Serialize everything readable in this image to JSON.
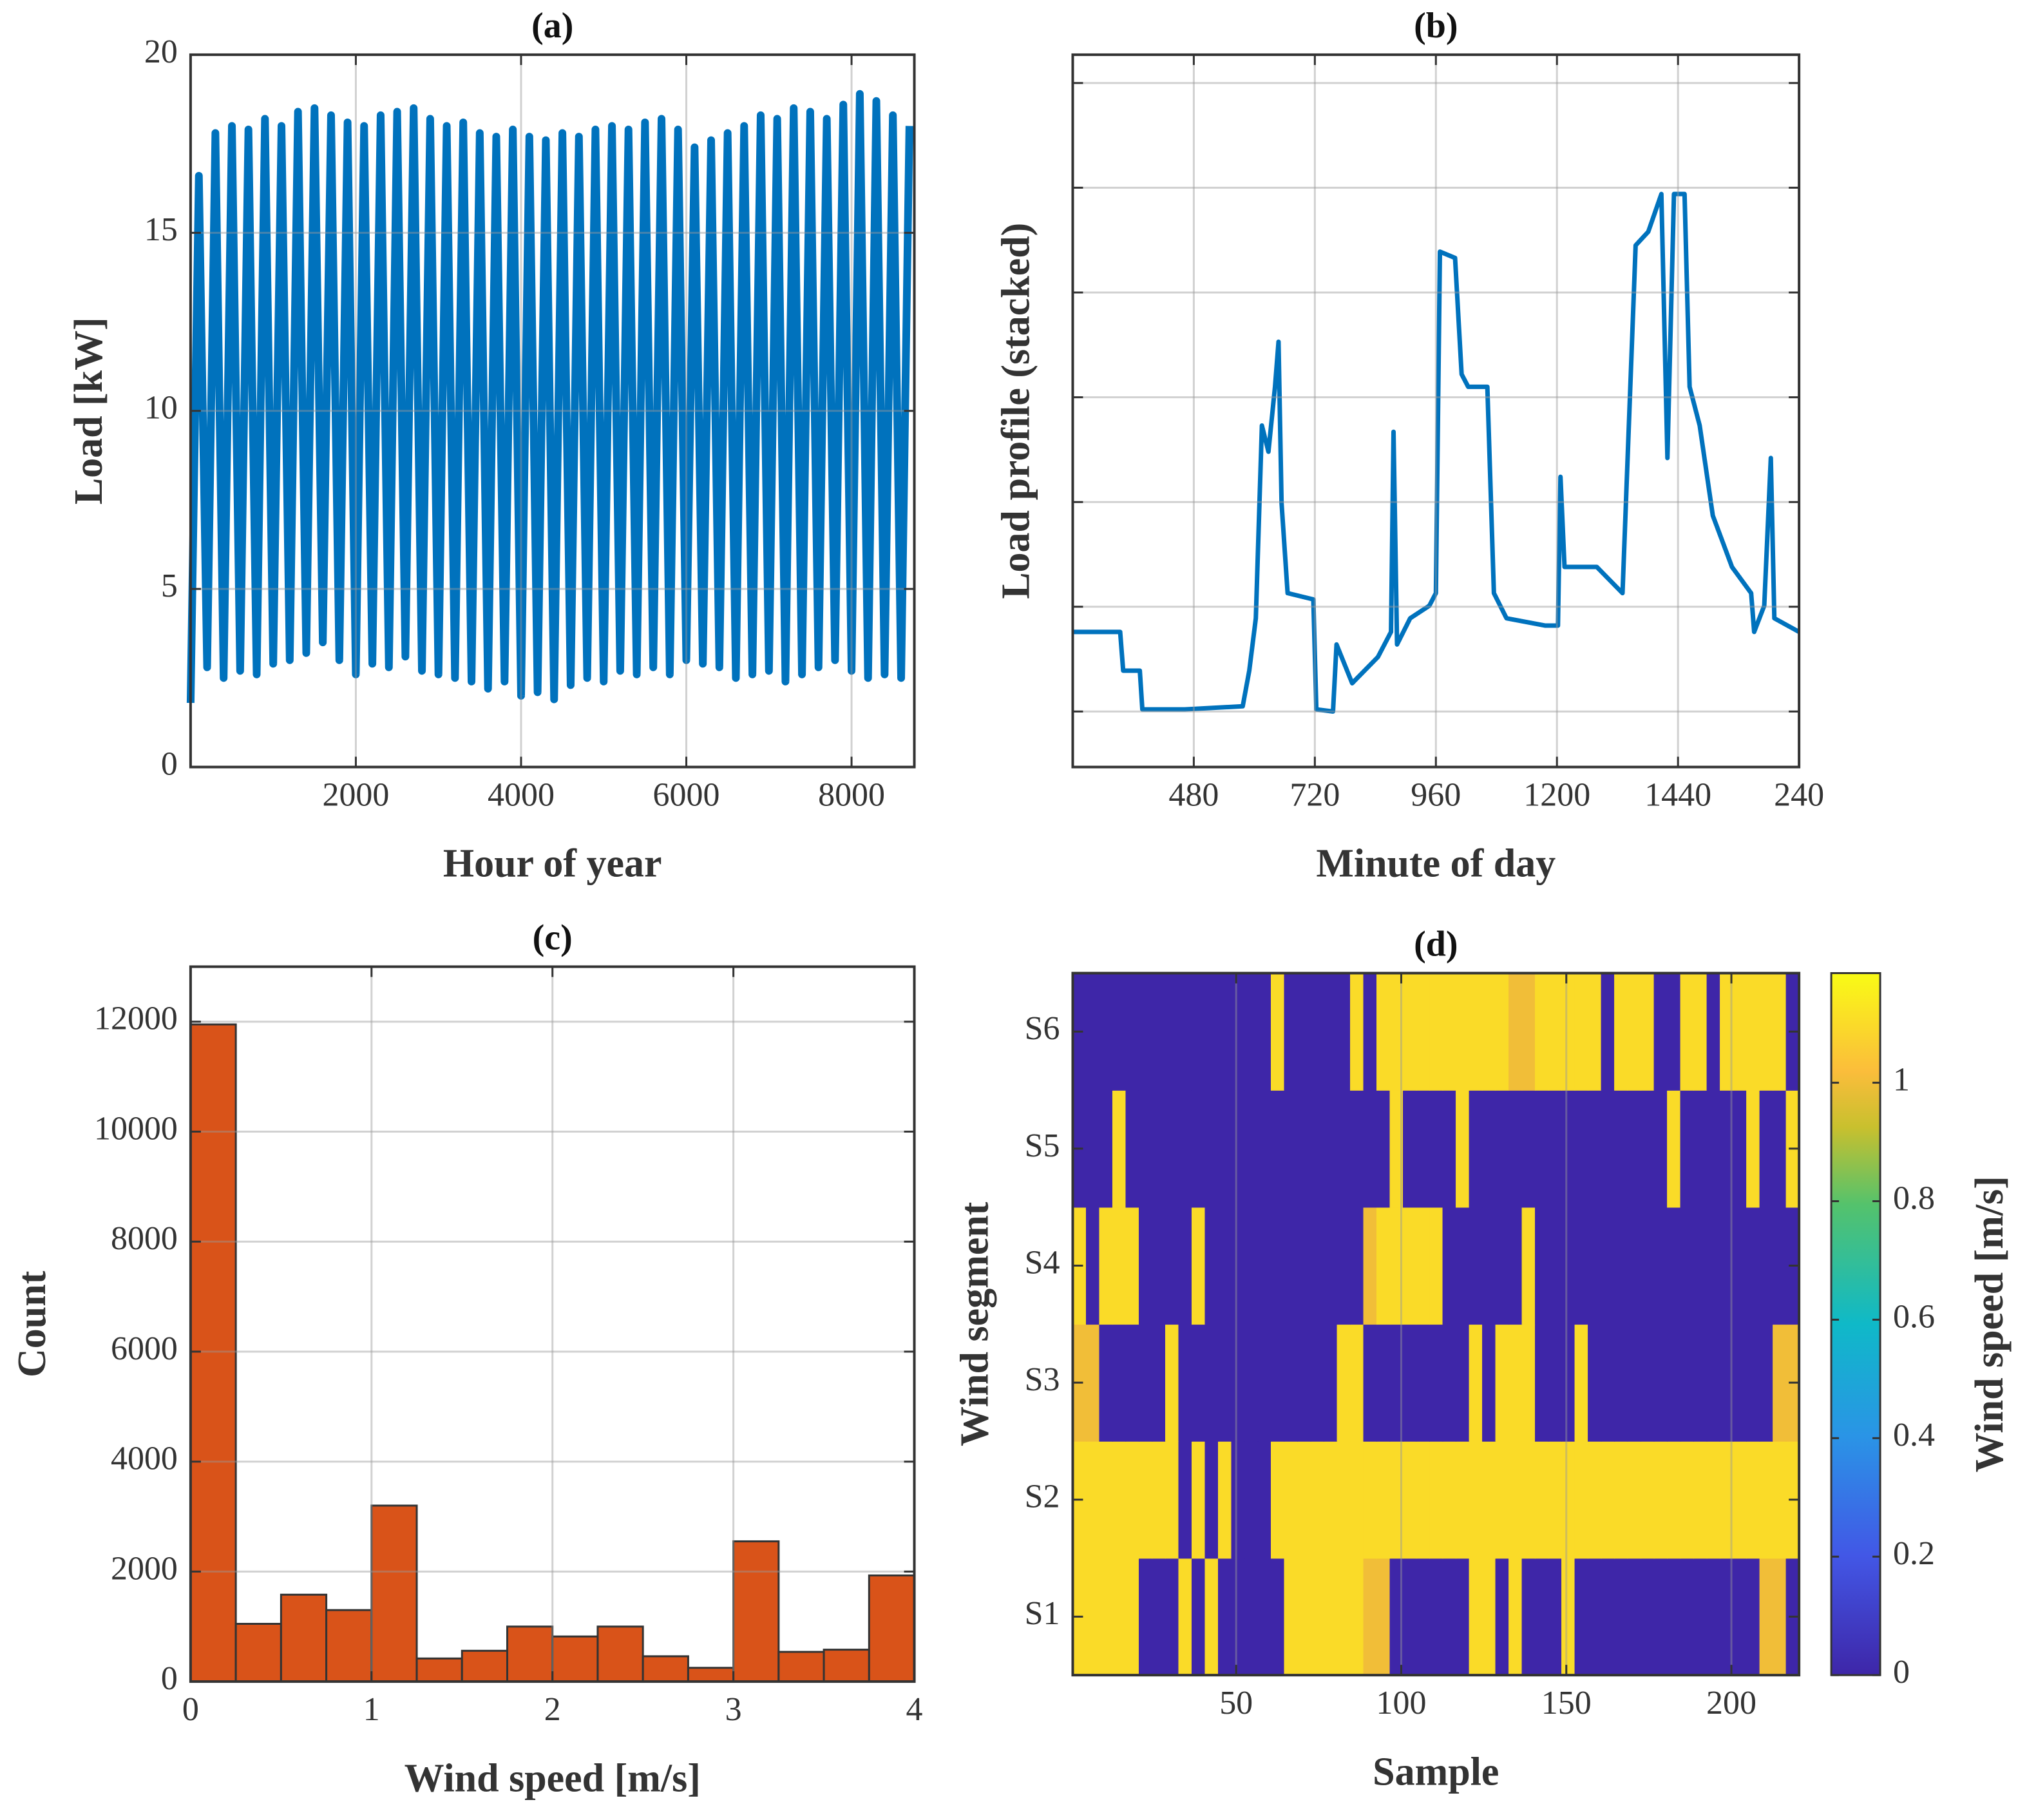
{
  "chart_data": [
    {
      "type": "line",
      "title": "(a)",
      "xlabel": "Hour of year",
      "ylabel": "Load [kW]",
      "color": "#0072bd",
      "grid": true,
      "xlim": [
        0,
        8760
      ],
      "ylim": [
        0,
        20
      ],
      "xticks": [
        2000,
        4000,
        6000,
        8000
      ],
      "yticks": [
        0,
        5,
        10,
        15,
        20
      ],
      "x": [
        0,
        100,
        200,
        300,
        400,
        500,
        600,
        700,
        800,
        900,
        1000,
        1100,
        1200,
        1300,
        1400,
        1500,
        1600,
        1700,
        1800,
        1900,
        2000,
        2100,
        2200,
        2300,
        2400,
        2500,
        2600,
        2700,
        2800,
        2900,
        3000,
        3100,
        3200,
        3300,
        3400,
        3500,
        3600,
        3700,
        3800,
        3900,
        4000,
        4100,
        4200,
        4300,
        4400,
        4500,
        4600,
        4700,
        4800,
        4900,
        5000,
        5100,
        5200,
        5300,
        5400,
        5500,
        5600,
        5700,
        5800,
        5900,
        6000,
        6100,
        6200,
        6300,
        6400,
        6500,
        6600,
        6700,
        6800,
        6900,
        7000,
        7100,
        7200,
        7300,
        7400,
        7500,
        7600,
        7700,
        7800,
        7900,
        8000,
        8100,
        8200,
        8300,
        8400,
        8500,
        8600,
        8700
      ],
      "values": [
        1.8,
        16.6,
        2.8,
        17.8,
        2.5,
        18.0,
        2.7,
        17.9,
        2.6,
        18.2,
        2.9,
        18.0,
        3.0,
        18.4,
        3.2,
        18.5,
        3.5,
        18.3,
        3.0,
        18.1,
        2.6,
        18.0,
        2.9,
        18.3,
        2.8,
        18.4,
        3.1,
        18.5,
        2.7,
        18.2,
        2.6,
        18.0,
        2.5,
        18.1,
        2.4,
        17.8,
        2.2,
        17.7,
        2.4,
        17.9,
        2.0,
        17.7,
        2.1,
        17.6,
        1.9,
        17.8,
        2.3,
        17.7,
        2.5,
        17.9,
        2.4,
        18.0,
        2.7,
        17.9,
        2.6,
        18.1,
        2.8,
        18.2,
        2.6,
        17.9,
        3.0,
        17.4,
        2.9,
        17.6,
        2.8,
        17.8,
        2.5,
        18.0,
        2.6,
        18.3,
        2.7,
        18.2,
        2.4,
        18.5,
        2.6,
        18.4,
        2.8,
        18.2,
        3.0,
        18.6,
        2.7,
        18.9,
        2.5,
        18.7,
        2.6,
        18.3,
        2.5,
        18.0
      ]
    },
    {
      "type": "line",
      "title": "(b)",
      "xlabel": "Minute of day",
      "ylabel": "Load profile (stacked)",
      "color": "#0072bd",
      "grid": true,
      "ytick_labels": false,
      "xlim": [
        240,
        1680
      ],
      "ylim": [
        0.47,
        7.27
      ],
      "xticks": [
        480,
        720,
        960,
        1200,
        1440,
        {
          "value": 1680,
          "label": "240"
        }
      ],
      "yticks": [
        1,
        2,
        3,
        4,
        5,
        6,
        7
      ],
      "x": [
        240,
        334,
        340,
        373,
        378,
        462,
        577,
        590,
        603,
        615,
        628,
        641,
        648,
        654,
        666,
        717,
        723,
        756,
        763,
        794,
        845,
        871,
        876,
        883,
        909,
        947,
        960,
        968,
        998,
        1011,
        1024,
        1062,
        1075,
        1100,
        1177,
        1202,
        1207,
        1215,
        1279,
        1330,
        1356,
        1381,
        1407,
        1419,
        1432,
        1453,
        1463,
        1483,
        1509,
        1547,
        1585,
        1591,
        1611,
        1624,
        1631,
        1680
      ],
      "values": [
        1.76,
        1.76,
        1.39,
        1.39,
        1.02,
        1.02,
        1.05,
        1.39,
        1.89,
        3.73,
        3.48,
        4.1,
        4.53,
        2.99,
        2.13,
        2.07,
        1.02,
        1.0,
        1.64,
        1.27,
        1.52,
        1.76,
        3.67,
        1.64,
        1.89,
        2.01,
        2.13,
        5.39,
        5.33,
        4.22,
        4.1,
        4.1,
        2.13,
        1.89,
        1.82,
        1.82,
        3.24,
        2.38,
        2.38,
        2.13,
        5.45,
        5.58,
        5.94,
        3.42,
        5.94,
        5.94,
        4.1,
        3.73,
        2.87,
        2.38,
        2.13,
        1.76,
        2.01,
        3.42,
        1.89,
        1.76
      ]
    },
    {
      "type": "histogram",
      "title": "(c)",
      "xlabel": "Wind speed [m/s]",
      "ylabel": "Count",
      "color": "#d95319",
      "edgecolor": "#333333",
      "grid": true,
      "xlim": [
        0,
        4
      ],
      "ylim": [
        0,
        13000
      ],
      "xticks": [
        0,
        1,
        2,
        3,
        4
      ],
      "yticks": [
        0,
        2000,
        4000,
        6000,
        8000,
        10000,
        12000
      ],
      "bins": [
        0,
        0.25,
        0.5,
        0.75,
        1,
        1.25,
        1.5,
        1.75,
        2,
        2.25,
        2.5,
        2.75,
        3,
        3.25,
        3.5,
        3.75,
        4
      ],
      "counts": [
        11950,
        1050,
        1580,
        1300,
        3200,
        420,
        560,
        1000,
        820,
        1000,
        460,
        250,
        2550,
        540,
        580,
        1930
      ]
    },
    {
      "type": "heatmap",
      "title": "(d)",
      "xlabel": "Sample",
      "ylabel": "Wind segment",
      "colormap": "parula",
      "grid": true,
      "xlim": [
        0.5,
        220.5
      ],
      "xticks": [
        50,
        100,
        150,
        200
      ],
      "categories": [
        "S1",
        "S2",
        "S3",
        "S4",
        "S5",
        "S6"
      ],
      "x": [
        2.5,
        6.5,
        10.5,
        14.5,
        18.5,
        22.5,
        26.5,
        30.5,
        34.5,
        38.5,
        42.5,
        46.5,
        50.5,
        54.5,
        58.5,
        62.5,
        66.5,
        70.5,
        74.5,
        78.5,
        82.5,
        86.5,
        90.5,
        94.5,
        98.5,
        102.5,
        106.5,
        110.5,
        114.5,
        118.5,
        122.5,
        126.5,
        130.5,
        134.5,
        138.5,
        142.5,
        146.5,
        150.5,
        154.5,
        158.5,
        162.5,
        166.5,
        170.5,
        174.5,
        178.5,
        182.5,
        186.5,
        190.5,
        194.5,
        198.5,
        202.5,
        206.5,
        210.5,
        214.5,
        218.5
      ],
      "z": [
        [
          1.1,
          1.1,
          1.1,
          1.1,
          1.1,
          0,
          0,
          0,
          1.1,
          0,
          1.1,
          0,
          0,
          0,
          0,
          0,
          1.1,
          1.1,
          1.1,
          1.1,
          1.1,
          1.1,
          1,
          1,
          0,
          0,
          0,
          0,
          0,
          0,
          1.1,
          1.1,
          0,
          1.1,
          0,
          0,
          0,
          1.1,
          0,
          0,
          0,
          0,
          0,
          0,
          0,
          0,
          0,
          0,
          0,
          0,
          0,
          0,
          1,
          1,
          0
        ],
        [
          1.1,
          1.1,
          1.1,
          1.1,
          1.1,
          1.1,
          1.1,
          1.1,
          0,
          1.1,
          0,
          1.1,
          0,
          0,
          0,
          1.1,
          1.1,
          1.1,
          1.1,
          1.1,
          1.1,
          1.1,
          1.1,
          1.1,
          1.1,
          1.1,
          1.1,
          1.1,
          1.1,
          1.1,
          1.1,
          1.1,
          1.1,
          1.1,
          1.1,
          1.1,
          1.1,
          1.1,
          1.1,
          1.1,
          1.1,
          1.1,
          1.1,
          1.1,
          1.1,
          1.1,
          1.1,
          1.1,
          1.1,
          1.1,
          1.1,
          1.1,
          1.1,
          1.1,
          1.1
        ],
        [
          1,
          1,
          0,
          0,
          0,
          0,
          0,
          1.1,
          0,
          0,
          0,
          0,
          0,
          0,
          0,
          0,
          0,
          0,
          0,
          0,
          1.1,
          1.1,
          0,
          0,
          0,
          0,
          0,
          0,
          0,
          0,
          1.1,
          0,
          1.1,
          1.1,
          1.1,
          0,
          0,
          0,
          1.1,
          0,
          0,
          0,
          0,
          0,
          0,
          0,
          0,
          0,
          0,
          0,
          0,
          0,
          0,
          1,
          1
        ],
        [
          1.1,
          0,
          1.1,
          1.1,
          1.1,
          0,
          0,
          0,
          0,
          1.1,
          0,
          0,
          0,
          0,
          0,
          0,
          0,
          0,
          0,
          0,
          0,
          0,
          1,
          1.1,
          1.1,
          1.1,
          1.1,
          1.1,
          0,
          0,
          0,
          0,
          0,
          0,
          1.1,
          0,
          0,
          0,
          0,
          0,
          0,
          0,
          0,
          0,
          0,
          0,
          0,
          0,
          0,
          0,
          0,
          0,
          0,
          0,
          0
        ],
        [
          0,
          0,
          0,
          1.1,
          0,
          0,
          0,
          0,
          0,
          0,
          0,
          0,
          0,
          0,
          0,
          0,
          0,
          0,
          0,
          0,
          0,
          0,
          0,
          0,
          1.1,
          0,
          0,
          0,
          0,
          1.1,
          0,
          0,
          0,
          0,
          0,
          0,
          0,
          0,
          0,
          0,
          0,
          0,
          0,
          0,
          0,
          1.1,
          0,
          0,
          0,
          0,
          0,
          1.1,
          0,
          0,
          1.1
        ],
        [
          0,
          0,
          0,
          0,
          0,
          0,
          0,
          0,
          0,
          0,
          0,
          0,
          0,
          0,
          0,
          1.1,
          0,
          0,
          0,
          0,
          0,
          1.1,
          0,
          1.1,
          1.1,
          1.1,
          1.1,
          1.1,
          1.1,
          1.1,
          1.1,
          1.1,
          1.1,
          1,
          1,
          1.1,
          1.1,
          1.1,
          1.1,
          1.1,
          0,
          1.1,
          1.1,
          1.1,
          0,
          0,
          1.1,
          1.1,
          0,
          1.1,
          1.1,
          1.1,
          1.1,
          1.1,
          0
        ]
      ],
      "colorbar": {
        "label": "Wind speed [m/s]",
        "clim": [
          0,
          1.185
        ],
        "ticks": [
          0,
          0.2,
          0.4,
          0.6,
          0.8,
          1
        ]
      }
    }
  ]
}
